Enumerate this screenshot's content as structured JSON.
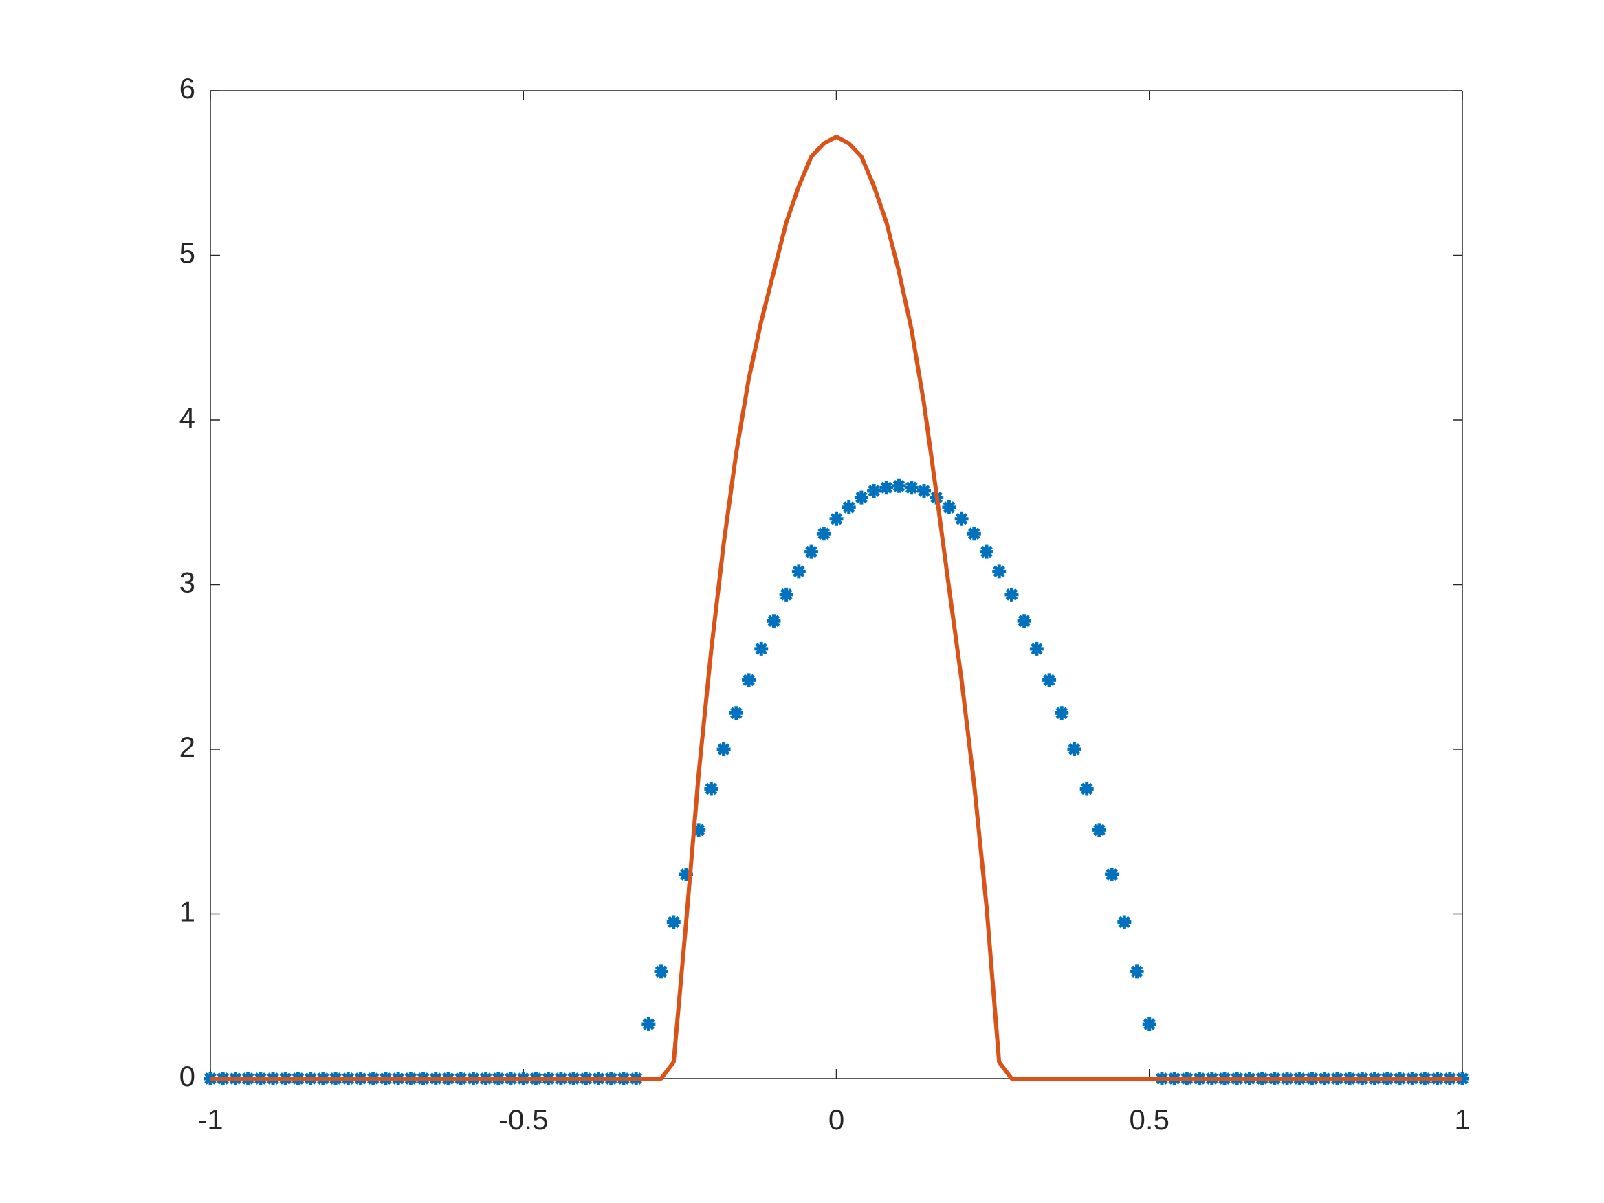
{
  "chart_data": {
    "type": "line",
    "x": [
      -1,
      -0.98,
      -0.96,
      -0.94,
      -0.92,
      -0.9,
      -0.88,
      -0.86,
      -0.84,
      -0.82,
      -0.8,
      -0.78,
      -0.76,
      -0.74,
      -0.72,
      -0.7,
      -0.68,
      -0.66,
      -0.64,
      -0.62,
      -0.6,
      -0.58,
      -0.56,
      -0.54,
      -0.52,
      -0.5,
      -0.48,
      -0.46,
      -0.44,
      -0.42,
      -0.4,
      -0.38,
      -0.36,
      -0.34,
      -0.32,
      -0.3,
      -0.28,
      -0.26,
      -0.24,
      -0.22,
      -0.2,
      -0.18,
      -0.16,
      -0.14,
      -0.12,
      -0.1,
      -0.08,
      -0.06,
      -0.04,
      -0.02,
      0,
      0.02,
      0.04,
      0.06,
      0.08,
      0.1,
      0.12,
      0.14,
      0.16,
      0.18,
      0.2,
      0.22,
      0.24,
      0.26,
      0.28,
      0.3,
      0.32,
      0.34,
      0.36,
      0.38,
      0.4,
      0.42,
      0.44,
      0.46,
      0.48,
      0.5,
      0.52,
      0.54,
      0.56,
      0.58,
      0.6,
      0.62,
      0.64,
      0.66,
      0.68,
      0.7,
      0.72,
      0.74,
      0.76,
      0.78,
      0.8,
      0.82,
      0.84,
      0.86,
      0.88,
      0.9,
      0.92,
      0.94,
      0.96,
      0.98,
      1
    ],
    "series": [
      {
        "color": "#0072bd",
        "marker": "*",
        "linestyle": "none",
        "values": [
          0,
          0,
          0,
          0,
          0,
          0,
          0,
          0,
          0,
          0,
          0,
          0,
          0,
          0,
          0,
          0,
          0,
          0,
          0,
          0,
          0,
          0,
          0,
          0,
          0,
          0,
          0,
          0,
          0,
          0,
          0,
          0,
          0,
          0,
          0,
          0.33,
          0.65,
          0.95,
          1.24,
          1.51,
          1.76,
          2.0,
          2.22,
          2.42,
          2.61,
          2.78,
          2.94,
          3.08,
          3.2,
          3.31,
          3.4,
          3.47,
          3.53,
          3.57,
          3.59,
          3.6,
          3.59,
          3.57,
          3.53,
          3.47,
          3.4,
          3.31,
          3.2,
          3.08,
          2.94,
          2.78,
          2.61,
          2.42,
          2.22,
          2.0,
          1.76,
          1.51,
          1.24,
          0.95,
          0.65,
          0.33,
          0,
          0,
          0,
          0,
          0,
          0,
          0,
          0,
          0,
          0,
          0,
          0,
          0,
          0,
          0,
          0,
          0,
          0,
          0,
          0,
          0,
          0,
          0,
          0,
          0
        ]
      },
      {
        "color": "#d95319",
        "marker": "none",
        "linestyle": "-",
        "values": [
          0,
          0,
          0,
          0,
          0,
          0,
          0,
          0,
          0,
          0,
          0,
          0,
          0,
          0,
          0,
          0,
          0,
          0,
          0,
          0,
          0,
          0,
          0,
          0,
          0,
          0,
          0,
          0,
          0,
          0,
          0,
          0,
          0,
          0,
          0,
          0,
          0,
          0.1,
          0.95,
          1.85,
          2.6,
          3.25,
          3.8,
          4.25,
          4.6,
          4.9,
          5.2,
          5.42,
          5.6,
          5.68,
          5.72,
          5.68,
          5.6,
          5.42,
          5.2,
          4.9,
          4.55,
          4.1,
          3.55,
          2.98,
          2.42,
          1.79,
          1.04,
          0.1,
          0,
          0,
          0,
          0,
          0,
          0,
          0,
          0,
          0,
          0,
          0,
          0,
          0,
          0,
          0,
          0,
          0,
          0,
          0,
          0,
          0,
          0,
          0,
          0,
          0,
          0,
          0,
          0,
          0,
          0,
          0,
          0,
          0,
          0,
          0,
          0,
          0
        ]
      }
    ],
    "xlim": [
      -1,
      1
    ],
    "xticks": [
      -1,
      -0.5,
      0,
      0.5,
      1
    ],
    "ylim": [
      0,
      6
    ],
    "yticks": [
      0,
      1,
      2,
      3,
      4,
      5,
      6
    ],
    "grid": false,
    "box": true
  }
}
